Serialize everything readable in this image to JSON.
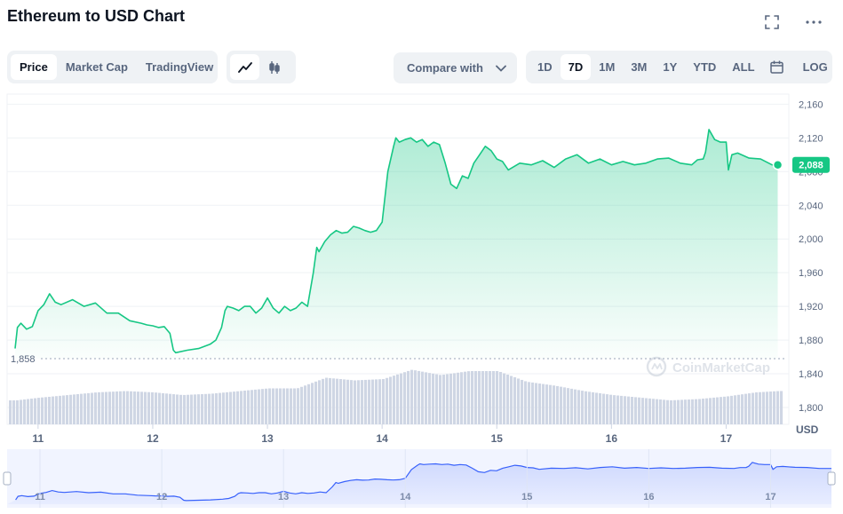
{
  "header": {
    "title": "Ethereum to USD Chart"
  },
  "icons": {
    "fullscreen": "fullscreen-icon",
    "more": "more-icon"
  },
  "view_tabs": [
    {
      "label": "Price",
      "active": true
    },
    {
      "label": "Market Cap",
      "active": false
    },
    {
      "label": "TradingView",
      "active": false
    }
  ],
  "chart_type_buttons": [
    {
      "icon": "line-chart-icon",
      "active": true
    },
    {
      "icon": "candlestick-icon",
      "active": false
    }
  ],
  "compare": {
    "label": "Compare with"
  },
  "ranges": [
    {
      "label": "1D",
      "active": false
    },
    {
      "label": "7D",
      "active": true
    },
    {
      "label": "1M",
      "active": false
    },
    {
      "label": "3M",
      "active": false
    },
    {
      "label": "1Y",
      "active": false
    },
    {
      "label": "YTD",
      "active": false
    },
    {
      "label": "ALL",
      "active": false
    }
  ],
  "log_label": "LOG",
  "colors": {
    "accent": "#16c784",
    "navigator": "#3861fb",
    "grid": "#eff2f5",
    "volume": "#cfd6e4"
  },
  "chart_data": {
    "type": "line",
    "currency_label": "USD",
    "watermark": "CoinMarketCap",
    "y_ticks": [
      1800,
      1840,
      1880,
      1920,
      1960,
      2000,
      2040,
      2080,
      2120,
      2160
    ],
    "y_tick_labels": [
      "1,800",
      "1,840",
      "1,880",
      "1,920",
      "1,960",
      "2,000",
      "2,040",
      "2,080",
      "2,120",
      "2,160"
    ],
    "ylim": [
      1780,
      2172
    ],
    "x_tick_labels": [
      "11",
      "12",
      "13",
      "14",
      "15",
      "16",
      "17"
    ],
    "x_tick_values": [
      11,
      12,
      13,
      14,
      15,
      16,
      17
    ],
    "xlim": [
      10.73,
      17.5
    ],
    "reference_value": 1858,
    "reference_label": "1,858",
    "current_value": 2088,
    "current_label": "2,088",
    "series": [
      {
        "x": [
          10.8,
          10.82,
          10.85,
          10.9,
          10.95,
          11.0,
          11.05,
          11.1,
          11.15,
          11.2,
          11.3,
          11.4,
          11.5,
          11.6,
          11.7,
          11.8,
          11.9,
          11.95,
          12.0,
          12.05,
          12.1,
          12.15,
          12.18,
          12.2,
          12.3,
          12.4,
          12.5,
          12.55,
          12.6,
          12.63,
          12.65,
          12.7,
          12.75,
          12.8,
          12.85,
          12.9,
          12.95,
          13.0,
          13.05,
          13.1,
          13.15,
          13.2,
          13.25,
          13.3,
          13.35,
          13.4,
          13.43,
          13.45,
          13.5,
          13.55,
          13.6,
          13.65,
          13.7,
          13.75,
          13.8,
          13.85,
          13.9,
          13.95,
          14.0,
          14.05,
          14.1,
          14.12,
          14.15,
          14.2,
          14.25,
          14.3,
          14.35,
          14.4,
          14.45,
          14.5,
          14.55,
          14.6,
          14.65,
          14.7,
          14.75,
          14.8,
          14.85,
          14.9,
          14.95,
          15.0,
          15.05,
          15.1,
          15.2,
          15.3,
          15.4,
          15.5,
          15.6,
          15.7,
          15.8,
          15.9,
          16.0,
          16.1,
          16.2,
          16.3,
          16.4,
          16.5,
          16.6,
          16.7,
          16.75,
          16.8,
          16.82,
          16.85,
          16.9,
          16.95,
          17.0,
          17.02,
          17.05,
          17.1,
          17.2,
          17.3,
          17.4,
          17.45
        ],
        "values": [
          1870,
          1895,
          1900,
          1893,
          1896,
          1915,
          1922,
          1935,
          1925,
          1922,
          1928,
          1920,
          1924,
          1912,
          1912,
          1903,
          1900,
          1898,
          1897,
          1895,
          1896,
          1888,
          1868,
          1865,
          1868,
          1870,
          1875,
          1880,
          1895,
          1915,
          1920,
          1918,
          1915,
          1920,
          1920,
          1912,
          1918,
          1930,
          1918,
          1912,
          1920,
          1915,
          1918,
          1925,
          1920,
          1960,
          1990,
          1985,
          1997,
          2005,
          2010,
          2007,
          2008,
          2015,
          2013,
          2010,
          2008,
          2010,
          2020,
          2080,
          2110,
          2120,
          2115,
          2118,
          2120,
          2115,
          2118,
          2110,
          2115,
          2112,
          2090,
          2065,
          2060,
          2075,
          2072,
          2090,
          2100,
          2110,
          2105,
          2095,
          2092,
          2082,
          2090,
          2088,
          2093,
          2085,
          2095,
          2100,
          2090,
          2095,
          2088,
          2092,
          2088,
          2090,
          2095,
          2096,
          2090,
          2088,
          2094,
          2095,
          2103,
          2130,
          2118,
          2115,
          2115,
          2082,
          2100,
          2102,
          2096,
          2095,
          2088,
          2088
        ]
      }
    ],
    "volume": {
      "x": [
        10.8,
        11.0,
        11.25,
        11.5,
        11.75,
        12.0,
        12.25,
        12.5,
        12.75,
        13.0,
        13.25,
        13.5,
        13.75,
        14.0,
        14.25,
        14.5,
        14.75,
        15.0,
        15.25,
        15.5,
        15.75,
        16.0,
        16.25,
        16.5,
        16.75,
        17.0,
        17.25,
        17.45
      ],
      "values": [
        18,
        20,
        22,
        24,
        25,
        24,
        22,
        23,
        25,
        27,
        27,
        35,
        33,
        34,
        41,
        37,
        40,
        40,
        32,
        29,
        25,
        22,
        20,
        18,
        19,
        21,
        24,
        25
      ]
    },
    "navigator": {
      "x_tick_labels": [
        "11",
        "12",
        "13",
        "14",
        "15",
        "16",
        "17"
      ]
    }
  }
}
